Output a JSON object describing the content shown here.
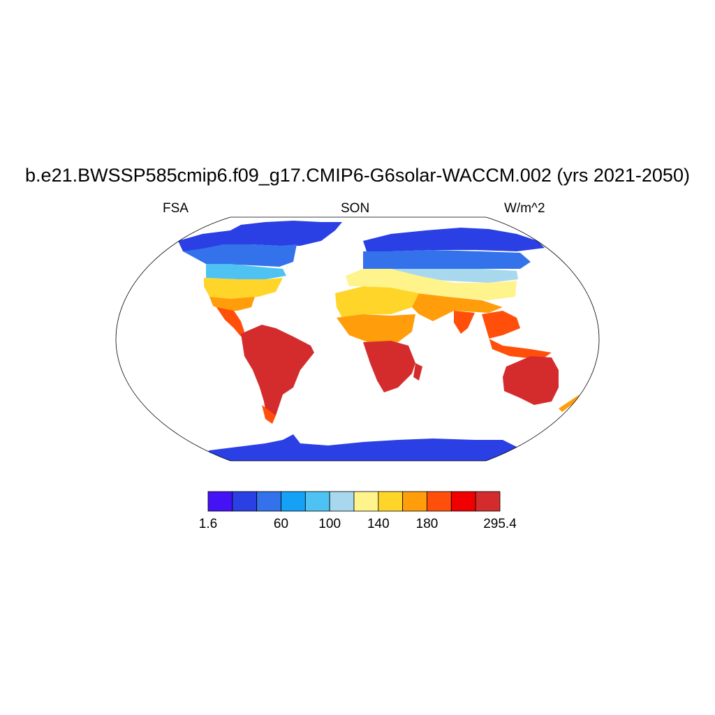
{
  "title": "b.e21.BWSSP585cmip6.f09_g17.CMIP6-G6solar-WACCM.002 (yrs 2021-2050)",
  "left_label": "FSA",
  "center_label": "SON",
  "right_label": "W/m^2",
  "colorbar": {
    "colors": [
      "#4412f4",
      "#2a3fe4",
      "#3372ea",
      "#15a1f6",
      "#4ec2f2",
      "#a8d8ee",
      "#fff38c",
      "#ffd52a",
      "#ff9d0a",
      "#ff4f0a",
      "#f00000",
      "#d42c2c"
    ],
    "labels": [
      {
        "text": "1.6",
        "boundary": 0
      },
      {
        "text": "60",
        "boundary": 3
      },
      {
        "text": "100",
        "boundary": 5
      },
      {
        "text": "140",
        "boundary": 7
      },
      {
        "text": "180",
        "boundary": 9
      },
      {
        "text": "295.4",
        "boundary": 12
      }
    ]
  },
  "land_regions": [
    {
      "name": "arctic-canada-greenland",
      "color": "#2a3fe4"
    },
    {
      "name": "canada",
      "color": "#3372ea"
    },
    {
      "name": "northern-us",
      "color": "#4ec2f2"
    },
    {
      "name": "us",
      "color": "#ffd52a"
    },
    {
      "name": "southern-us",
      "color": "#ff9d0a"
    },
    {
      "name": "mexico-central-america",
      "color": "#ff4f0a"
    },
    {
      "name": "south-america",
      "color": "#d42c2c"
    },
    {
      "name": "siberia",
      "color": "#2a3fe4"
    },
    {
      "name": "russia",
      "color": "#3372ea"
    },
    {
      "name": "central-asia",
      "color": "#a8d8ee"
    },
    {
      "name": "europe",
      "color": "#fff38c"
    },
    {
      "name": "north-africa",
      "color": "#ffd52a"
    },
    {
      "name": "sahel",
      "color": "#ff9d0a"
    },
    {
      "name": "southern-africa",
      "color": "#d42c2c"
    },
    {
      "name": "middle-east",
      "color": "#ff9d0a"
    },
    {
      "name": "india",
      "color": "#ff4f0a"
    },
    {
      "name": "southeast-asia",
      "color": "#ff4f0a"
    },
    {
      "name": "australia",
      "color": "#d42c2c"
    },
    {
      "name": "new-zealand",
      "color": "#ff9d0a"
    },
    {
      "name": "antarctica",
      "color": "#2a3fe4"
    }
  ]
}
